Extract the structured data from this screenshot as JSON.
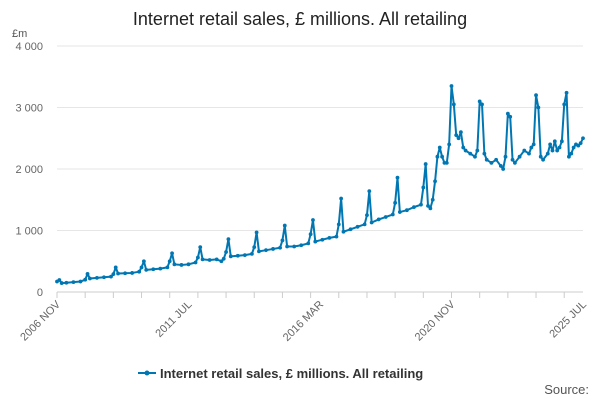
{
  "chart_data": {
    "type": "line",
    "title": "Internet retail sales, £ millions. All retailing",
    "ylabel": "£m",
    "xlabel": "",
    "ylim": [
      0,
      4000
    ],
    "yticks": [
      0,
      1000,
      2000,
      3000,
      4000
    ],
    "ytick_labels": [
      "0",
      "1 000",
      "2 000",
      "3 000",
      "4 000"
    ],
    "xlim": [
      "2006 NOV",
      "2025 JUL"
    ],
    "xtick_labels": [
      "2006 NOV",
      "2011 JUL",
      "2016 MAR",
      "2020 NOV",
      "2025 JUL"
    ],
    "grid": "horizontal",
    "legend_position": "bottom",
    "color": "#0077b3",
    "series": [
      {
        "name": "Internet retail sales, £ millions. All retailing",
        "points": [
          [
            "2006-11",
            170
          ],
          [
            "2006-12",
            195
          ],
          [
            "2007-01",
            145
          ],
          [
            "2007-03",
            150
          ],
          [
            "2007-06",
            160
          ],
          [
            "2007-09",
            170
          ],
          [
            "2007-11",
            200
          ],
          [
            "2007-12",
            295
          ],
          [
            "2008-01",
            220
          ],
          [
            "2008-04",
            230
          ],
          [
            "2008-07",
            240
          ],
          [
            "2008-10",
            250
          ],
          [
            "2008-11",
            290
          ],
          [
            "2008-12",
            400
          ],
          [
            "2009-01",
            300
          ],
          [
            "2009-04",
            305
          ],
          [
            "2009-07",
            310
          ],
          [
            "2009-10",
            330
          ],
          [
            "2009-11",
            400
          ],
          [
            "2009-12",
            500
          ],
          [
            "2010-01",
            360
          ],
          [
            "2010-04",
            370
          ],
          [
            "2010-07",
            380
          ],
          [
            "2010-10",
            400
          ],
          [
            "2010-11",
            500
          ],
          [
            "2010-12",
            630
          ],
          [
            "2011-01",
            450
          ],
          [
            "2011-04",
            440
          ],
          [
            "2011-07",
            450
          ],
          [
            "2011-10",
            480
          ],
          [
            "2011-11",
            560
          ],
          [
            "2011-12",
            730
          ],
          [
            "2012-01",
            530
          ],
          [
            "2012-04",
            520
          ],
          [
            "2012-07",
            530
          ],
          [
            "2012-09",
            500
          ],
          [
            "2012-10",
            540
          ],
          [
            "2012-11",
            650
          ],
          [
            "2012-12",
            860
          ],
          [
            "2013-01",
            580
          ],
          [
            "2013-04",
            590
          ],
          [
            "2013-07",
            600
          ],
          [
            "2013-10",
            620
          ],
          [
            "2013-11",
            730
          ],
          [
            "2013-12",
            970
          ],
          [
            "2014-01",
            660
          ],
          [
            "2014-04",
            680
          ],
          [
            "2014-07",
            700
          ],
          [
            "2014-10",
            720
          ],
          [
            "2014-11",
            840
          ],
          [
            "2014-12",
            1080
          ],
          [
            "2015-01",
            740
          ],
          [
            "2015-04",
            740
          ],
          [
            "2015-07",
            760
          ],
          [
            "2015-10",
            790
          ],
          [
            "2015-11",
            940
          ],
          [
            "2015-12",
            1170
          ],
          [
            "2016-01",
            820
          ],
          [
            "2016-04",
            850
          ],
          [
            "2016-07",
            880
          ],
          [
            "2016-10",
            900
          ],
          [
            "2016-11",
            1100
          ],
          [
            "2016-12",
            1520
          ],
          [
            "2017-01",
            980
          ],
          [
            "2017-04",
            1020
          ],
          [
            "2017-07",
            1060
          ],
          [
            "2017-10",
            1100
          ],
          [
            "2017-11",
            1250
          ],
          [
            "2017-12",
            1640
          ],
          [
            "2018-01",
            1130
          ],
          [
            "2018-04",
            1180
          ],
          [
            "2018-07",
            1220
          ],
          [
            "2018-10",
            1260
          ],
          [
            "2018-11",
            1450
          ],
          [
            "2018-12",
            1860
          ],
          [
            "2019-01",
            1300
          ],
          [
            "2019-04",
            1330
          ],
          [
            "2019-07",
            1380
          ],
          [
            "2019-10",
            1420
          ],
          [
            "2019-11",
            1700
          ],
          [
            "2019-12",
            2080
          ],
          [
            "2020-01",
            1400
          ],
          [
            "2020-02",
            1360
          ],
          [
            "2020-03",
            1500
          ],
          [
            "2020-04",
            1800
          ],
          [
            "2020-05",
            2200
          ],
          [
            "2020-06",
            2350
          ],
          [
            "2020-07",
            2200
          ],
          [
            "2020-08",
            2100
          ],
          [
            "2020-09",
            2100
          ],
          [
            "2020-10",
            2400
          ],
          [
            "2020-11",
            3350
          ],
          [
            "2020-12",
            3050
          ],
          [
            "2021-01",
            2550
          ],
          [
            "2021-02",
            2500
          ],
          [
            "2021-03",
            2600
          ],
          [
            "2021-04",
            2350
          ],
          [
            "2021-05",
            2300
          ],
          [
            "2021-07",
            2250
          ],
          [
            "2021-09",
            2200
          ],
          [
            "2021-10",
            2300
          ],
          [
            "2021-11",
            3100
          ],
          [
            "2021-12",
            3050
          ],
          [
            "2022-01",
            2250
          ],
          [
            "2022-02",
            2150
          ],
          [
            "2022-04",
            2100
          ],
          [
            "2022-06",
            2150
          ],
          [
            "2022-08",
            2050
          ],
          [
            "2022-09",
            2000
          ],
          [
            "2022-10",
            2200
          ],
          [
            "2022-11",
            2900
          ],
          [
            "2022-12",
            2850
          ],
          [
            "2023-01",
            2150
          ],
          [
            "2023-02",
            2100
          ],
          [
            "2023-04",
            2200
          ],
          [
            "2023-06",
            2300
          ],
          [
            "2023-08",
            2250
          ],
          [
            "2023-09",
            2350
          ],
          [
            "2023-10",
            2400
          ],
          [
            "2023-11",
            3200
          ],
          [
            "2023-12",
            3000
          ],
          [
            "2024-01",
            2200
          ],
          [
            "2024-02",
            2150
          ],
          [
            "2024-04",
            2250
          ],
          [
            "2024-05",
            2400
          ],
          [
            "2024-06",
            2300
          ],
          [
            "2024-07",
            2450
          ],
          [
            "2024-08",
            2300
          ],
          [
            "2024-09",
            2350
          ],
          [
            "2024-10",
            2450
          ],
          [
            "2024-11",
            3050
          ],
          [
            "2024-12",
            3240
          ],
          [
            "2025-01",
            2200
          ],
          [
            "2025-02",
            2250
          ],
          [
            "2025-03",
            2350
          ],
          [
            "2025-04",
            2400
          ],
          [
            "2025-05",
            2380
          ],
          [
            "2025-06",
            2420
          ],
          [
            "2025-07",
            2500
          ]
        ]
      }
    ],
    "source_label": "Source:"
  }
}
